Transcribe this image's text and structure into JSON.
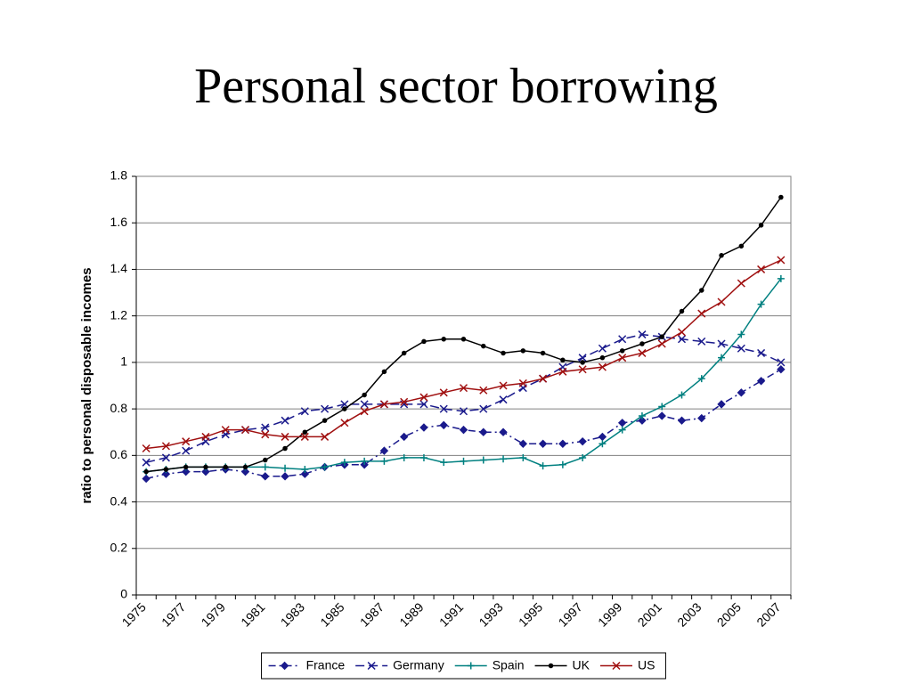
{
  "chart_data": {
    "type": "line",
    "title": "Personal sector borrowing",
    "y_label": "ratio to personal disposable incomes",
    "categories": [
      "1975",
      null,
      "1977",
      null,
      "1979",
      null,
      "1981",
      null,
      "1983",
      null,
      "1985",
      null,
      "1987",
      null,
      "1989",
      null,
      "1991",
      null,
      "1993",
      null,
      "1995",
      null,
      "1997",
      null,
      "1999",
      null,
      "2001",
      null,
      "2003",
      null,
      "2005",
      null,
      "2007"
    ],
    "ylim": [
      0,
      1.8
    ],
    "yticks": [
      0,
      0.2,
      0.4,
      0.6,
      0.8,
      1,
      1.2,
      1.4,
      1.6,
      1.8
    ],
    "grid": true,
    "legend": "bottom",
    "series": [
      {
        "name": "France",
        "color": "#1a1a8c",
        "dash": "dash-dot",
        "marker": "diamond",
        "values": [
          0.5,
          0.52,
          0.53,
          0.53,
          0.54,
          0.53,
          0.51,
          0.51,
          0.52,
          0.55,
          0.56,
          0.56,
          0.62,
          0.68,
          0.72,
          0.73,
          0.71,
          0.7,
          0.7,
          0.65,
          0.65,
          0.65,
          0.66,
          0.68,
          0.74,
          0.75,
          0.77,
          0.75,
          0.76,
          0.82,
          0.87,
          0.92,
          0.97
        ]
      },
      {
        "name": "Germany",
        "color": "#1a1a8c",
        "dash": "dash",
        "marker": "x",
        "values": [
          0.57,
          0.59,
          0.62,
          0.66,
          0.69,
          0.71,
          0.72,
          0.75,
          0.79,
          0.8,
          0.82,
          0.82,
          0.82,
          0.82,
          0.82,
          0.8,
          0.79,
          0.8,
          0.84,
          0.89,
          0.93,
          0.98,
          1.02,
          1.06,
          1.1,
          1.12,
          1.11,
          1.1,
          1.09,
          1.08,
          1.06,
          1.04,
          1.0
        ]
      },
      {
        "name": "Spain",
        "color": "#008080",
        "dash": "solid",
        "marker": "plus",
        "values": [
          0.53,
          0.54,
          0.55,
          0.55,
          0.55,
          0.55,
          0.55,
          0.545,
          0.54,
          0.55,
          0.57,
          0.575,
          0.575,
          0.59,
          0.59,
          0.57,
          0.575,
          0.58,
          0.585,
          0.59,
          0.555,
          0.56,
          0.59,
          0.65,
          0.71,
          0.77,
          0.81,
          0.86,
          0.93,
          1.02,
          1.12,
          1.25,
          1.36
        ]
      },
      {
        "name": "UK",
        "color": "#000000",
        "dash": "solid",
        "marker": "dot",
        "values": [
          0.53,
          0.54,
          0.55,
          0.55,
          0.55,
          0.55,
          0.58,
          0.63,
          0.7,
          0.75,
          0.8,
          0.86,
          0.96,
          1.04,
          1.09,
          1.1,
          1.1,
          1.07,
          1.04,
          1.05,
          1.04,
          1.01,
          1.0,
          1.02,
          1.05,
          1.08,
          1.11,
          1.22,
          1.31,
          1.46,
          1.5,
          1.59,
          1.71
        ]
      },
      {
        "name": "US",
        "color": "#a01010",
        "dash": "solid",
        "marker": "x",
        "values": [
          0.63,
          0.64,
          0.66,
          0.68,
          0.71,
          0.71,
          0.69,
          0.68,
          0.68,
          0.68,
          0.74,
          0.79,
          0.82,
          0.83,
          0.85,
          0.87,
          0.89,
          0.88,
          0.9,
          0.91,
          0.93,
          0.96,
          0.97,
          0.98,
          1.02,
          1.04,
          1.08,
          1.13,
          1.21,
          1.26,
          1.34,
          1.4,
          1.44
        ]
      }
    ]
  }
}
